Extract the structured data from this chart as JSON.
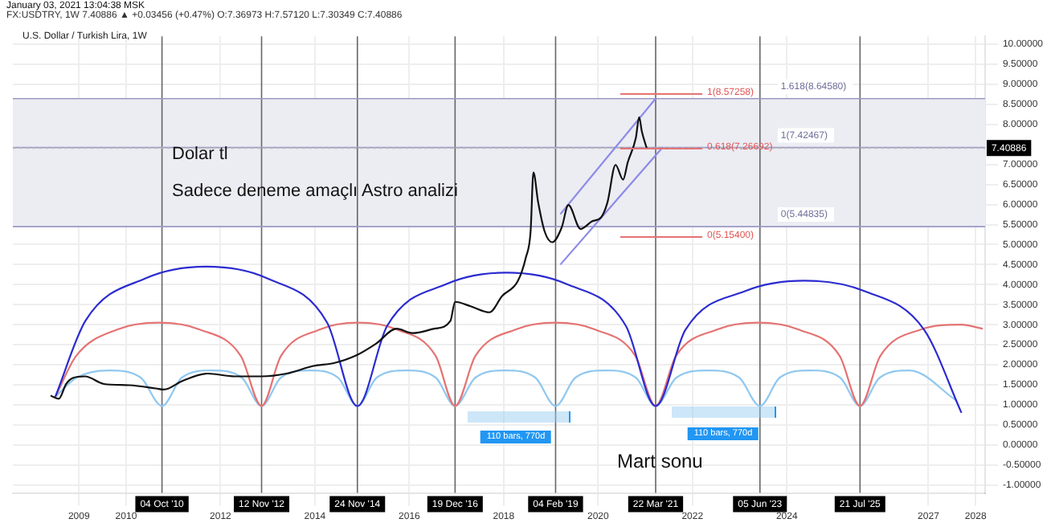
{
  "chart_data": {
    "type": "line",
    "title": "U.S. Dollar / Turkish Lira, 1W",
    "subtitle": "FX:USDTRY, 1W 7.40886 ▲ +0.03456 (+0.47%) O:7.36973 H:7.57120 L:7.30349 C:7.40886",
    "annotations": [
      "January 03, 2021 13:04:38 MSK",
      "Dolar tl",
      "Sadece deneme amaçlı Astro analizi",
      "Mart sonu",
      "1(8.57258)",
      "0.618(7.26692)",
      "0(5.15400)",
      "110 bars, 770d",
      "110 bars, 770d"
    ],
    "xlim": [
      2007.6,
      2028.2
    ],
    "ylim": [
      -1.2,
      10.2
    ],
    "xticks": [
      2009,
      2010,
      2012,
      2014,
      2016,
      2018,
      2020,
      2022,
      2024,
      2027,
      2028
    ],
    "yticks": [
      {
        "value": -1,
        "label": "-1.00000"
      },
      {
        "value": -0.5,
        "label": "-0.50000"
      },
      {
        "value": 0,
        "label": "0.00000"
      },
      {
        "value": 0.5,
        "label": "0.50000"
      },
      {
        "value": 1,
        "label": "1.00000"
      },
      {
        "value": 1.5,
        "label": "1.50000"
      },
      {
        "value": 2,
        "label": "2.00000"
      },
      {
        "value": 2.5,
        "label": "2.50000"
      },
      {
        "value": 3,
        "label": "3.00000"
      },
      {
        "value": 3.5,
        "label": "3.50000"
      },
      {
        "value": 4,
        "label": "4.00000"
      },
      {
        "value": 4.5,
        "label": "4.50000"
      },
      {
        "value": 5,
        "label": "5.00000"
      },
      {
        "value": 5.5,
        "label": "5.50000"
      },
      {
        "value": 6,
        "label": "6.00000"
      },
      {
        "value": 6.5,
        "label": "6.50000"
      },
      {
        "value": 7,
        "label": "7.00000"
      },
      {
        "value": 8,
        "label": "8.00000"
      },
      {
        "value": 8.5,
        "label": "8.50000"
      },
      {
        "value": 9,
        "label": "9.00000"
      },
      {
        "value": 9.5,
        "label": "9.50000"
      },
      {
        "value": 10,
        "label": "10.00000"
      }
    ],
    "grid": true,
    "marker": "none",
    "line_style": "solid",
    "bands": [
      {
        "axis": "y",
        "from": 5.44835,
        "to": 8.6458,
        "color": "#ececf3"
      }
    ],
    "ref_lines": [
      {
        "axis": "x",
        "value": 2010.76,
        "label": "04 Oct '10",
        "color": "#666666"
      },
      {
        "axis": "x",
        "value": 2012.87,
        "label": "12 Nov '12",
        "color": "#666666"
      },
      {
        "axis": "x",
        "value": 2014.9,
        "label": "24 Nov '14",
        "color": "#666666"
      },
      {
        "axis": "x",
        "value": 2016.97,
        "label": "19 Dec '16",
        "color": "#666666"
      },
      {
        "axis": "x",
        "value": 2019.1,
        "label": "04 Feb '19",
        "color": "#666666"
      },
      {
        "axis": "x",
        "value": 2021.22,
        "label": "22 Mar '21",
        "color": "#666666"
      },
      {
        "axis": "x",
        "value": 2023.43,
        "label": "05 Jun '23",
        "color": "#666666"
      },
      {
        "axis": "x",
        "value": 2025.55,
        "label": "21 Jul '25",
        "color": "#666666"
      },
      {
        "axis": "y",
        "value": 8.6458,
        "label": "1.618(8.64580)",
        "color": "#9a9ac4",
        "line_style": "solid"
      },
      {
        "axis": "y",
        "value": 7.42467,
        "label": "1(7.42467)",
        "color": "#9a9ac4",
        "line_style": "solid"
      },
      {
        "axis": "y",
        "value": 5.44835,
        "label": "0(5.44835)",
        "color": "#9a9ac4",
        "line_style": "solid"
      },
      {
        "axis": "y",
        "value": 7.40886,
        "label": "7.40886",
        "color": "#bbbbbb",
        "line_style": "dotted"
      }
    ],
    "series": [
      {
        "color": "#111111",
        "x": [
          2008.4,
          2008.57,
          2008.73,
          2008.87,
          2009.13,
          2009.53,
          2010.07,
          2010.63,
          2010.8,
          2011.2,
          2011.73,
          2012.3,
          2012.87,
          2013.4,
          2013.97,
          2014.4,
          2014.87,
          2015.3,
          2015.73,
          2016.07,
          2016.53,
          2016.87,
          2016.97,
          2017.3,
          2017.7,
          2017.97,
          2018.3,
          2018.47,
          2018.57,
          2018.63,
          2018.73,
          2018.87,
          2019.03,
          2019.23,
          2019.37,
          2019.63,
          2019.87,
          2020.07,
          2020.2,
          2020.37,
          2020.53,
          2020.63,
          2020.8,
          2020.87,
          2020.93,
          2021.03
        ],
        "values": [
          1.23,
          1.15,
          1.52,
          1.67,
          1.71,
          1.52,
          1.49,
          1.41,
          1.38,
          1.6,
          1.78,
          1.71,
          1.71,
          1.78,
          1.97,
          2.04,
          2.23,
          2.53,
          2.9,
          2.79,
          2.9,
          3.09,
          3.57,
          3.46,
          3.31,
          3.72,
          4.09,
          4.68,
          5.32,
          6.8,
          6.06,
          5.32,
          5.06,
          5.43,
          5.99,
          5.39,
          5.58,
          5.69,
          6.06,
          6.99,
          6.62,
          7.06,
          7.66,
          8.18,
          7.81,
          7.41
        ]
      },
      {
        "color": "#2b2bd0",
        "x": [
          2008.5,
          2009.14,
          2010.42,
          2011.7,
          2012.98,
          2014.26,
          2014.9,
          2015.53,
          2016.8,
          2018.06,
          2019.32,
          2020.59,
          2021.22,
          2021.85,
          2023.12,
          2024.38,
          2025.64,
          2026.91,
          2027.7
        ],
        "values": [
          1.2,
          3.1,
          4.16,
          4.45,
          4.16,
          3.05,
          0.97,
          2.97,
          4.02,
          4.3,
          4.02,
          2.97,
          0.97,
          2.87,
          3.84,
          4.1,
          3.84,
          2.87,
          0.8
        ]
      },
      {
        "color": "#e57373",
        "x": [
          2008.5,
          2008.94,
          2009.81,
          2010.69,
          2011.56,
          2012.43,
          2012.87,
          2013.28,
          2014.1,
          2014.92,
          2015.74,
          2016.56,
          2016.97,
          2017.4,
          2018.25,
          2019.1,
          2019.94,
          2020.79,
          2021.22,
          2021.65,
          2022.52,
          2023.39,
          2024.25,
          2025.12,
          2025.55,
          2025.98,
          2026.84,
          2027.7,
          2028.15
        ],
        "values": [
          1.2,
          2.22,
          2.88,
          3.05,
          2.88,
          2.22,
          0.97,
          2.22,
          2.88,
          3.05,
          2.88,
          2.22,
          0.97,
          2.22,
          2.88,
          3.05,
          2.88,
          2.22,
          0.97,
          2.22,
          2.88,
          3.05,
          2.88,
          2.22,
          0.97,
          2.22,
          2.88,
          3.0,
          2.9
        ]
      },
      {
        "color": "#90c8f0",
        "x": [
          2008.5,
          2008.95,
          2009.63,
          2010.31,
          2010.76,
          2011.18,
          2011.82,
          2012.45,
          2012.87,
          2013.28,
          2013.89,
          2014.49,
          2014.9,
          2015.31,
          2015.94,
          2016.56,
          2016.97,
          2017.4,
          2018.04,
          2018.67,
          2019.1,
          2019.52,
          2020.16,
          2020.8,
          2021.22,
          2021.66,
          2022.33,
          2022.99,
          2023.43,
          2023.85,
          2024.49,
          2025.13,
          2025.55,
          2025.97,
          2026.6,
          2027.6
        ],
        "values": [
          1.2,
          1.68,
          1.86,
          1.68,
          0.97,
          1.68,
          1.86,
          1.68,
          0.97,
          1.68,
          1.86,
          1.68,
          0.97,
          1.68,
          1.86,
          1.68,
          0.97,
          1.68,
          1.86,
          1.68,
          0.97,
          1.68,
          1.86,
          1.68,
          0.97,
          1.68,
          1.86,
          1.68,
          0.97,
          1.68,
          1.86,
          1.68,
          0.97,
          1.68,
          1.86,
          1.1
        ]
      },
      {
        "color": "#8c8ce6",
        "x": [
          2019.2,
          2021.37
        ],
        "values": [
          4.5,
          7.43
        ]
      },
      {
        "color": "#8c8ce6",
        "x": [
          2019.2,
          2021.23
        ],
        "values": [
          5.76,
          8.66
        ]
      }
    ]
  }
}
